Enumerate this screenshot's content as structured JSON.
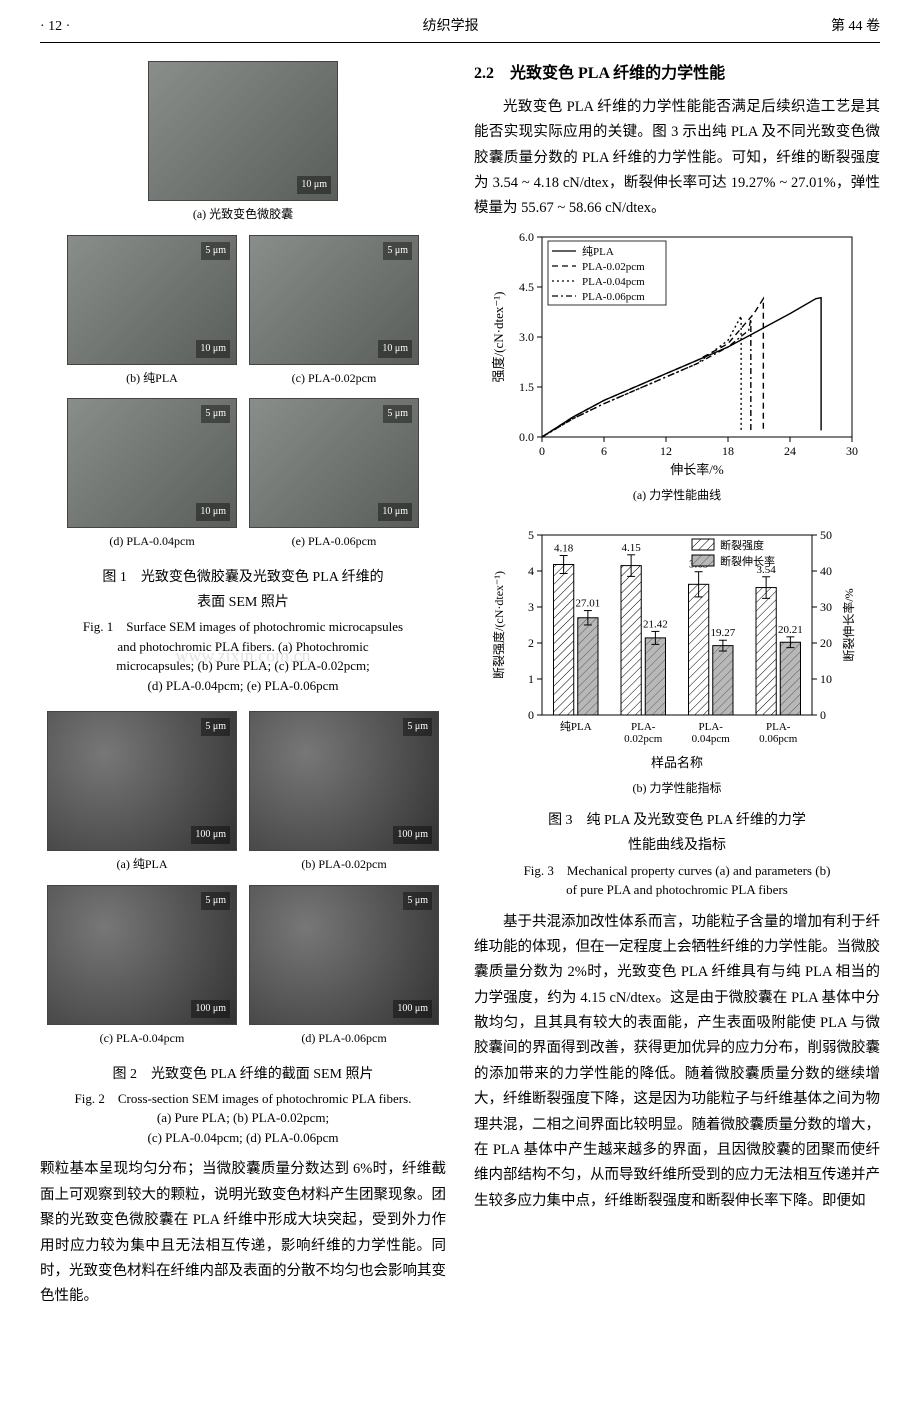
{
  "header": {
    "page": "· 12 ·",
    "journal": "纺织学报",
    "volume": "第 44 卷"
  },
  "fig1": {
    "sub_a": "(a) 光致变色微胶囊",
    "scale_a": "10 μm",
    "sub_b": "(b) 纯PLA",
    "sub_c": "(c) PLA-0.02pcm",
    "sub_d": "(d) PLA-0.04pcm",
    "sub_e": "(e) PLA-0.06pcm",
    "scale_5": "5 μm",
    "scale_10": "10 μm",
    "cn_line1": "图 1　光致变色微胶囊及光致变色 PLA 纤维的",
    "cn_line2": "表面 SEM 照片",
    "en_line1": "Fig. 1　Surface SEM images of photochromic microcapsules",
    "en_line2": "and photochromic PLA fibers. (a) Photochromic",
    "en_line3": "microcapsules; (b) Pure PLA; (c) PLA-0.02pcm;",
    "en_line4": "(d) PLA-0.04pcm; (e) PLA-0.06pcm"
  },
  "fig2": {
    "sub_a": "(a) 纯PLA",
    "sub_b": "(b) PLA-0.02pcm",
    "sub_c": "(c) PLA-0.04pcm",
    "sub_d": "(d) PLA-0.06pcm",
    "scale_5": "5 μm",
    "scale_100": "100 μm",
    "cn": "图 2　光致变色 PLA 纤维的截面 SEM 照片",
    "en_line1": "Fig. 2　Cross-section SEM images of photochromic PLA fibers.",
    "en_line2": "(a) Pure PLA; (b) PLA-0.02pcm;",
    "en_line3": "(c) PLA-0.04pcm; (d) PLA-0.06pcm"
  },
  "left_para": "颗粒基本呈现均匀分布；当微胶囊质量分数达到 6%时，纤维截面上可观察到较大的颗粒，说明光致变色材料产生团聚现象。团聚的光致变色微胶囊在 PLA 纤维中形成大块突起，受到外力作用时应力较为集中且无法相互传递，影响纤维的力学性能。同时，光致变色材料在纤维内部及表面的分散不均匀也会影响其变色性能。",
  "sec22_head": "2.2　光致变色 PLA 纤维的力学性能",
  "sec22_p1": "光致变色 PLA 纤维的力学性能能否满足后续织造工艺是其能否实现实际应用的关键。图 3 示出纯 PLA 及不同光致变色微胶囊质量分数的 PLA 纤维的力学性能。可知，纤维的断裂强度为 3.54 ~ 4.18 cN/dtex，断裂伸长率可达 19.27% ~ 27.01%，弹性模量为 55.67 ~ 58.66 cN/dtex。",
  "fig3": {
    "chartA": {
      "type": "line",
      "xlim": [
        0,
        30
      ],
      "ylim": [
        0,
        6.0
      ],
      "xticks": [
        0,
        6,
        12,
        18,
        24,
        30
      ],
      "yticks": [
        0.0,
        1.5,
        3.0,
        4.5,
        6.0
      ],
      "xlabel": "伸长率/%",
      "ylabel": "强度/(cN·dtex⁻¹)",
      "legend": [
        "纯PLA",
        "PLA-0.02pcm",
        "PLA-0.04pcm",
        "PLA-0.06pcm"
      ],
      "line_styles": [
        "solid",
        "dash",
        "dot",
        "dashdot"
      ],
      "colors": [
        "#000000",
        "#000000",
        "#000000",
        "#000000"
      ],
      "series": {
        "pure": [
          [
            0,
            0
          ],
          [
            3,
            0.6
          ],
          [
            6,
            1.1
          ],
          [
            9,
            1.5
          ],
          [
            12,
            1.9
          ],
          [
            15,
            2.3
          ],
          [
            18,
            2.7
          ],
          [
            21,
            3.2
          ],
          [
            24,
            3.7
          ],
          [
            26.5,
            4.15
          ],
          [
            27.01,
            4.18
          ],
          [
            27.01,
            0.2
          ]
        ],
        "p002": [
          [
            0,
            0
          ],
          [
            3,
            0.6
          ],
          [
            6,
            1.1
          ],
          [
            9,
            1.5
          ],
          [
            12,
            1.9
          ],
          [
            15,
            2.3
          ],
          [
            18,
            2.8
          ],
          [
            20.5,
            3.7
          ],
          [
            21.42,
            4.15
          ],
          [
            21.42,
            0.2
          ]
        ],
        "p004": [
          [
            0,
            0
          ],
          [
            3,
            0.55
          ],
          [
            6,
            1.0
          ],
          [
            9,
            1.4
          ],
          [
            12,
            1.8
          ],
          [
            15,
            2.2
          ],
          [
            18,
            2.9
          ],
          [
            19.27,
            3.63
          ],
          [
            19.27,
            0.2
          ]
        ],
        "p006": [
          [
            0,
            0
          ],
          [
            3,
            0.55
          ],
          [
            6,
            1.0
          ],
          [
            9,
            1.4
          ],
          [
            12,
            1.8
          ],
          [
            15,
            2.2
          ],
          [
            18,
            2.7
          ],
          [
            20,
            3.2
          ],
          [
            20.21,
            3.54
          ],
          [
            20.21,
            0.2
          ]
        ]
      },
      "background": "#ffffff",
      "axis_color": "#000000",
      "sub_caption": "(a) 力学性能曲线"
    },
    "chartB": {
      "type": "bar",
      "categories": [
        "纯PLA",
        "PLA-\n0.02pcm",
        "PLA-\n0.04pcm",
        "PLA-\n0.06pcm"
      ],
      "strength": [
        4.18,
        4.15,
        3.63,
        3.54
      ],
      "elongation": [
        27.01,
        21.42,
        19.27,
        20.21
      ],
      "strength_err": [
        0.25,
        0.3,
        0.35,
        0.3
      ],
      "elongation_err": [
        2.0,
        1.8,
        1.5,
        1.5
      ],
      "y1_lim": [
        0,
        5
      ],
      "y1_ticks": [
        0,
        1,
        2,
        3,
        4,
        5
      ],
      "y1_label": "断裂强度/(cN·dtex⁻¹)",
      "y2_lim": [
        0,
        50
      ],
      "y2_ticks": [
        0,
        10,
        20,
        30,
        40,
        50
      ],
      "y2_label": "断裂伸长率/%",
      "xlabel": "样品名称",
      "legend": [
        "断裂强度",
        "断裂伸长率"
      ],
      "bar_colors": [
        "#ffffff",
        "#b8b8b8"
      ],
      "hatch": [
        "////",
        "////"
      ],
      "bar_width": 0.35,
      "background": "#ffffff",
      "axis_color": "#000000",
      "sub_caption": "(b) 力学性能指标"
    },
    "cn_line1": "图 3　纯 PLA 及光致变色 PLA 纤维的力学",
    "cn_line2": "性能曲线及指标",
    "en_line1": "Fig. 3　Mechanical property curves (a) and parameters (b)",
    "en_line2": "of pure PLA and photochromic PLA fibers"
  },
  "sec22_p2": "基于共混添加改性体系而言，功能粒子含量的增加有利于纤维功能的体现，但在一定程度上会牺牲纤维的力学性能。当微胶囊质量分数为 2%时，光致变色 PLA 纤维具有与纯 PLA 相当的力学强度，约为 4.15 cN/dtex。这是由于微胶囊在 PLA 基体中分散均匀，且其具有较大的表面能，产生表面吸附能使 PLA 与微胶囊间的界面得到改善，获得更加优异的应力分布，削弱微胶囊的添加带来的力学性能的降低。随着微胶囊质量分数的继续增大，纤维断裂强度下降，这是因为功能粒子与纤维基体之间为物理共混，二相之间界面比较明显。随着微胶囊质量分数的增大，在 PLA 基体中产生越来越多的界面，且因微胶囊的团聚而使纤维内部结构不匀，从而导致纤维所受到的应力无法相互传递并产生较多应力集中点，纤维断裂强度和断裂伸长率下降。即便如"
}
